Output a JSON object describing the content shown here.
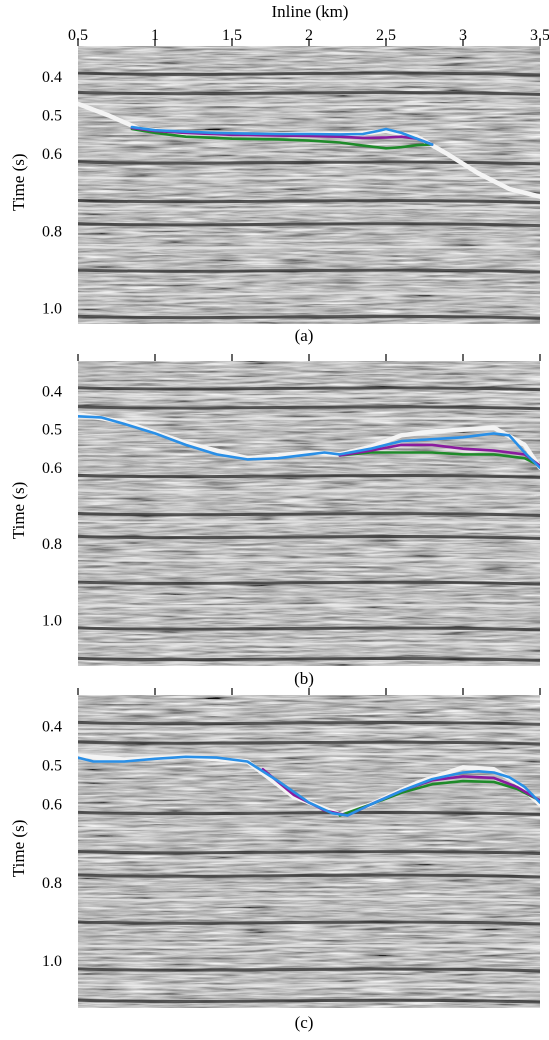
{
  "figure": {
    "x_axis_title": "Inline (km)",
    "x_tick_labels": [
      "0.5",
      "1",
      "1.5",
      "2",
      "2.5",
      "3",
      "3.5"
    ],
    "colors": {
      "background": "#ffffff",
      "axis": "#000000",
      "seismic_base": "#8f8f8f",
      "horizon_blue": "#2a8fe6",
      "horizon_purple": "#8a1b9e",
      "horizon_green": "#1f8a2a",
      "horizon_white": "#f4f4f4"
    }
  },
  "chart_data": [
    {
      "type": "line",
      "caption": "(a)",
      "xlabel": "Inline (km)",
      "ylabel": "Time (s)",
      "xlim": [
        0.5,
        3.5
      ],
      "ylim": [
        0.32,
        1.04
      ],
      "y_inverted": true,
      "y_tick_values": [
        0.4,
        0.5,
        0.6,
        0.8,
        1.0
      ],
      "y_tick_labels": [
        "0.4",
        "0.5",
        "0.6",
        "0.8",
        "1.0"
      ],
      "series": [
        {
          "color": "#f4f4f4",
          "x": [
            0.5,
            0.7,
            0.9,
            1.2,
            1.6,
            2.0,
            2.3,
            2.5,
            2.7,
            2.9,
            3.1,
            3.3,
            3.5
          ],
          "y": [
            0.47,
            0.5,
            0.535,
            0.545,
            0.55,
            0.548,
            0.548,
            0.54,
            0.555,
            0.6,
            0.65,
            0.69,
            0.71
          ]
        },
        {
          "color": "#1f8a2a",
          "x": [
            0.85,
            1.0,
            1.2,
            1.5,
            1.8,
            2.0,
            2.2,
            2.35,
            2.5,
            2.6,
            2.7,
            2.8
          ],
          "y": [
            0.535,
            0.545,
            0.555,
            0.56,
            0.562,
            0.565,
            0.57,
            0.578,
            0.585,
            0.582,
            0.577,
            0.575
          ]
        },
        {
          "color": "#8a1b9e",
          "x": [
            0.85,
            1.0,
            1.2,
            1.5,
            1.8,
            2.0,
            2.2,
            2.35,
            2.5,
            2.6,
            2.7,
            2.8
          ],
          "y": [
            0.532,
            0.54,
            0.545,
            0.55,
            0.552,
            0.553,
            0.555,
            0.558,
            0.557,
            0.555,
            0.56,
            0.575
          ]
        },
        {
          "color": "#2a8fe6",
          "x": [
            0.85,
            1.0,
            1.2,
            1.4,
            1.6,
            1.8,
            2.0,
            2.2,
            2.35,
            2.45,
            2.5,
            2.6,
            2.7,
            2.8
          ],
          "y": [
            0.53,
            0.538,
            0.542,
            0.545,
            0.547,
            0.548,
            0.548,
            0.549,
            0.548,
            0.54,
            0.535,
            0.545,
            0.56,
            0.575
          ]
        }
      ]
    },
    {
      "type": "line",
      "caption": "(b)",
      "xlabel": "Inline (km)",
      "ylabel": "Time (s)",
      "xlim": [
        0.5,
        3.5
      ],
      "ylim": [
        0.32,
        1.12
      ],
      "y_inverted": true,
      "y_tick_values": [
        0.4,
        0.5,
        0.6,
        0.8,
        1.0
      ],
      "y_tick_labels": [
        "0.4",
        "0.5",
        "0.6",
        "0.8",
        "1.0"
      ],
      "series": [
        {
          "color": "#f4f4f4",
          "x": [
            0.5,
            0.8,
            1.2,
            1.6,
            2.0,
            2.2,
            2.4,
            2.6,
            2.8,
            3.0,
            3.2,
            3.4,
            3.5
          ],
          "y": [
            0.46,
            0.48,
            0.535,
            0.575,
            0.56,
            0.565,
            0.545,
            0.515,
            0.505,
            0.5,
            0.495,
            0.54,
            0.6
          ]
        },
        {
          "color": "#1f8a2a",
          "x": [
            2.2,
            2.4,
            2.6,
            2.8,
            3.0,
            3.2,
            3.4,
            3.5
          ],
          "y": [
            0.568,
            0.56,
            0.56,
            0.56,
            0.565,
            0.565,
            0.575,
            0.595
          ]
        },
        {
          "color": "#8a1b9e",
          "x": [
            2.2,
            2.4,
            2.6,
            2.8,
            3.0,
            3.2,
            3.4,
            3.5
          ],
          "y": [
            0.568,
            0.555,
            0.54,
            0.54,
            0.55,
            0.555,
            0.565,
            0.595
          ]
        },
        {
          "color": "#2a8fe6",
          "x": [
            0.5,
            0.65,
            0.8,
            1.0,
            1.2,
            1.4,
            1.6,
            1.8,
            2.0,
            2.1,
            2.2,
            2.4,
            2.6,
            2.8,
            3.0,
            3.1,
            3.2,
            3.3,
            3.4,
            3.5
          ],
          "y": [
            0.465,
            0.468,
            0.485,
            0.51,
            0.54,
            0.565,
            0.578,
            0.575,
            0.565,
            0.56,
            0.565,
            0.55,
            0.53,
            0.525,
            0.52,
            0.515,
            0.51,
            0.515,
            0.56,
            0.6
          ]
        }
      ]
    },
    {
      "type": "line",
      "caption": "(c)",
      "xlabel": "Inline (km)",
      "ylabel": "Time (s)",
      "xlim": [
        0.5,
        3.5
      ],
      "ylim": [
        0.32,
        1.12
      ],
      "y_inverted": true,
      "y_tick_values": [
        0.4,
        0.5,
        0.6,
        0.8,
        1.0
      ],
      "y_tick_labels": [
        "0.4",
        "0.5",
        "0.6",
        "0.8",
        "1.0"
      ],
      "series": [
        {
          "color": "#f4f4f4",
          "x": [
            0.5,
            0.8,
            1.2,
            1.6,
            1.9,
            2.2,
            2.4,
            2.7,
            3.0,
            3.2,
            3.35,
            3.5
          ],
          "y": [
            0.475,
            0.485,
            0.478,
            0.49,
            0.58,
            0.625,
            0.6,
            0.545,
            0.505,
            0.51,
            0.545,
            0.6
          ]
        },
        {
          "color": "#1f8a2a",
          "x": [
            2.2,
            2.4,
            2.6,
            2.8,
            3.0,
            3.2,
            3.35,
            3.5
          ],
          "y": [
            0.628,
            0.6,
            0.57,
            0.548,
            0.54,
            0.542,
            0.56,
            0.59
          ]
        },
        {
          "color": "#8a1b9e",
          "x": [
            1.7,
            1.9,
            2.1,
            2.25,
            2.4,
            2.6,
            2.8,
            3.0,
            3.2,
            3.35,
            3.5
          ],
          "y": [
            0.51,
            0.575,
            0.615,
            0.628,
            0.6,
            0.565,
            0.538,
            0.528,
            0.532,
            0.555,
            0.59
          ]
        },
        {
          "color": "#2a8fe6",
          "x": [
            0.5,
            0.6,
            0.8,
            1.0,
            1.2,
            1.4,
            1.6,
            1.8,
            2.0,
            2.15,
            2.25,
            2.4,
            2.6,
            2.8,
            3.0,
            3.1,
            3.2,
            3.3,
            3.4,
            3.5
          ],
          "y": [
            0.48,
            0.49,
            0.49,
            0.483,
            0.478,
            0.48,
            0.49,
            0.54,
            0.595,
            0.622,
            0.628,
            0.6,
            0.565,
            0.535,
            0.518,
            0.515,
            0.518,
            0.53,
            0.555,
            0.595
          ]
        }
      ]
    }
  ]
}
